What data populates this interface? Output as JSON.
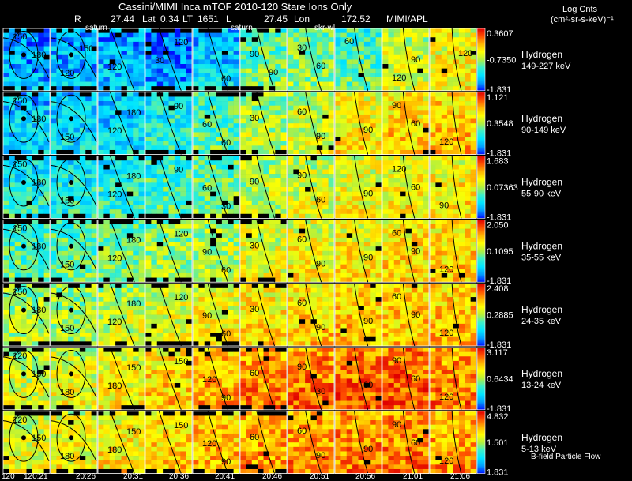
{
  "header": {
    "title": "Cassini/MIMI Inca mTOF  2010-120   Stare    Ions Only",
    "line2": {
      "r_label": "R",
      "r_value": "27.44",
      "lat_label": "Lat",
      "lat_value": "0.34",
      "lt_label": "LT",
      "lt_value": "1651",
      "l_label": "L",
      "l_value": "27.45",
      "lon_label": "Lon",
      "lon_value": "172.52",
      "source": "MIMI/APL"
    },
    "markers": [
      "saturn",
      "saturn",
      "skr-wl"
    ]
  },
  "colorbar_title": {
    "line1": "Log Cnts",
    "line2": "(cm²-sr-s-keV)⁻¹"
  },
  "footer_note": "B-field Particle Flow",
  "colors": {
    "scale": [
      "#0010ff",
      "#00a0ff",
      "#00e6ff",
      "#3cf0c8",
      "#b4f03c",
      "#ffff00",
      "#ffb400",
      "#ff5000",
      "#e00000"
    ]
  },
  "chart_data": {
    "type": "heatmap",
    "x_tick_labels": [
      "120",
      "120:21",
      "20:26",
      "20:31",
      "20:36",
      "20:41",
      "20:46",
      "20:51",
      "20:56",
      "21:01",
      "21:06"
    ],
    "rows": [
      {
        "species": "Hydrogen",
        "energy": "149-227 keV",
        "cbar": [
          "0.3607",
          "-0.7350",
          "-1.831"
        ],
        "level": [
          0.15,
          0.18,
          0.18,
          0.12,
          0.22,
          0.42,
          0.46,
          0.38,
          0.56,
          0.62
        ],
        "contours": [
          "150",
          "180",
          "120",
          "150",
          "120",
          "120",
          "30",
          "60",
          "90",
          "90",
          "30",
          "60",
          "60",
          "90",
          "120",
          "120"
        ]
      },
      {
        "species": "Hydrogen",
        "energy": "90-149 keV",
        "cbar": [
          "1.121",
          "0.3548",
          "-1.831"
        ],
        "level": [
          0.22,
          0.24,
          0.24,
          0.3,
          0.38,
          0.5,
          0.56,
          0.64,
          0.68,
          0.7
        ],
        "contours": [
          "150",
          "180",
          "150",
          "180",
          "120",
          "90",
          "60",
          "60",
          "30",
          "90",
          "60",
          "90",
          "90",
          "60",
          "120"
        ]
      },
      {
        "species": "Hydrogen",
        "energy": "55-90 keV",
        "cbar": [
          "1.683",
          "0.07363",
          "-1.831"
        ],
        "level": [
          0.3,
          0.3,
          0.32,
          0.36,
          0.42,
          0.52,
          0.56,
          0.6,
          0.62,
          0.64
        ],
        "contours": [
          "150",
          "180",
          "150",
          "180",
          "120",
          "90",
          "60",
          "30",
          "90",
          "60",
          "90",
          "90",
          "120",
          "60",
          "90"
        ]
      },
      {
        "species": "Hydrogen",
        "energy": "35-55 keV",
        "cbar": [
          "2.050",
          "0.1095",
          "-1.831"
        ],
        "level": [
          0.38,
          0.4,
          0.42,
          0.48,
          0.52,
          0.58,
          0.62,
          0.64,
          0.66,
          0.68
        ],
        "contours": [
          "150",
          "180",
          "150",
          "180",
          "120",
          "120",
          "90",
          "60",
          "30",
          "90",
          "60",
          "90",
          "60",
          "90",
          "120"
        ]
      },
      {
        "species": "Hydrogen",
        "energy": "24-35 keV",
        "cbar": [
          "2.408",
          "0.2885",
          "-1.831"
        ],
        "level": [
          0.5,
          0.5,
          0.54,
          0.58,
          0.62,
          0.66,
          0.68,
          0.7,
          0.7,
          0.72
        ],
        "contours": [
          "150",
          "180",
          "150",
          "180",
          "120",
          "120",
          "90",
          "60",
          "30",
          "90",
          "60",
          "90",
          "60",
          "90",
          "120"
        ]
      },
      {
        "species": "Hydrogen",
        "energy": "13-24 keV",
        "cbar": [
          "3.117",
          "0.6434",
          "-1.831"
        ],
        "level": [
          0.56,
          0.58,
          0.62,
          0.68,
          0.74,
          0.8,
          0.82,
          0.84,
          0.86,
          0.8
        ],
        "contours": [
          "120",
          "150",
          "180",
          "150",
          "180",
          "150",
          "120",
          "90",
          "60",
          "30",
          "90",
          "60",
          "90",
          "60",
          "120"
        ]
      },
      {
        "species": "Hydrogen",
        "energy": "5-13 keV",
        "cbar": [
          "4.832",
          "1.501",
          "1.831"
        ],
        "level": [
          0.58,
          0.6,
          0.64,
          0.68,
          0.72,
          0.76,
          0.78,
          0.8,
          0.8,
          0.76
        ],
        "contours": [
          "120",
          "150",
          "180",
          "150",
          "180",
          "150",
          "120",
          "90",
          "60",
          "90",
          "60",
          "90",
          "90",
          "60",
          "120"
        ]
      }
    ]
  }
}
